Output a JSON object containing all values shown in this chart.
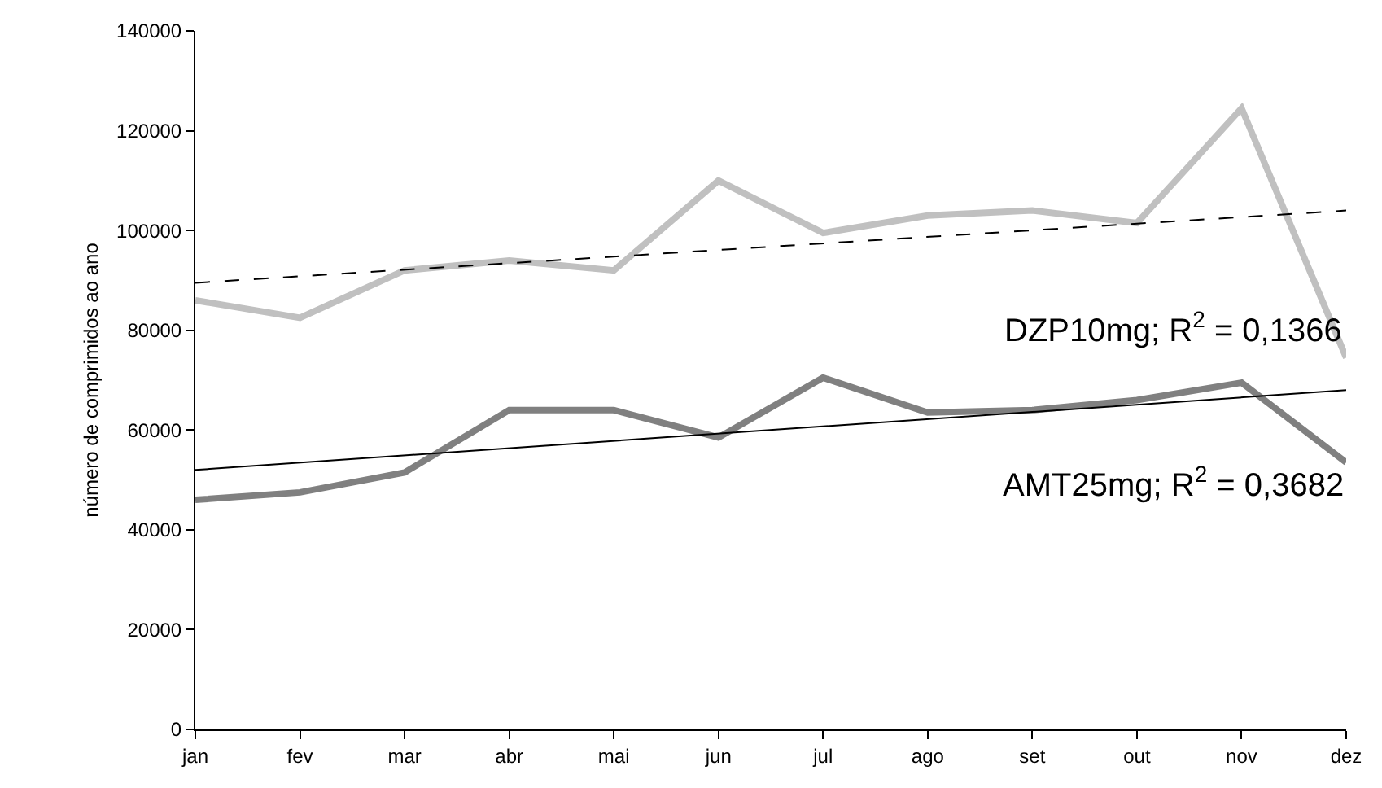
{
  "chart_data": {
    "type": "line",
    "ylabel": "número de comprimidos ao ano",
    "categories": [
      "jan",
      "fev",
      "mar",
      "abr",
      "mai",
      "jun",
      "jul",
      "ago",
      "set",
      "out",
      "nov",
      "dez"
    ],
    "series": [
      {
        "color": "#c0c0c0",
        "values": [
          86000,
          82500,
          92000,
          94000,
          92000,
          110000,
          99500,
          103000,
          104000,
          101500,
          124500,
          74500
        ]
      },
      {
        "color": "#808080",
        "values": [
          46000,
          47500,
          51500,
          64000,
          64000,
          58500,
          70500,
          63500,
          64000,
          66000,
          69500,
          53500
        ]
      },
      {
        "color": "#000000",
        "x": [
          "jan",
          "dez"
        ],
        "values": [
          89500,
          104000
        ],
        "line_style": "dashed"
      },
      {
        "color": "#000000",
        "x": [
          "jan",
          "dez"
        ],
        "values": [
          52000,
          68000
        ],
        "line_style": "solid"
      }
    ],
    "annotations": [
      "DZP10mg; R$^{2}$ = 0,1366",
      "AMT25mg; R$^{2}$ = 0,3682"
    ],
    "ylim": [
      0,
      140000
    ],
    "yticks": [
      0,
      20000,
      40000,
      60000,
      80000,
      100000,
      120000,
      140000
    ],
    "marker": "none"
  }
}
